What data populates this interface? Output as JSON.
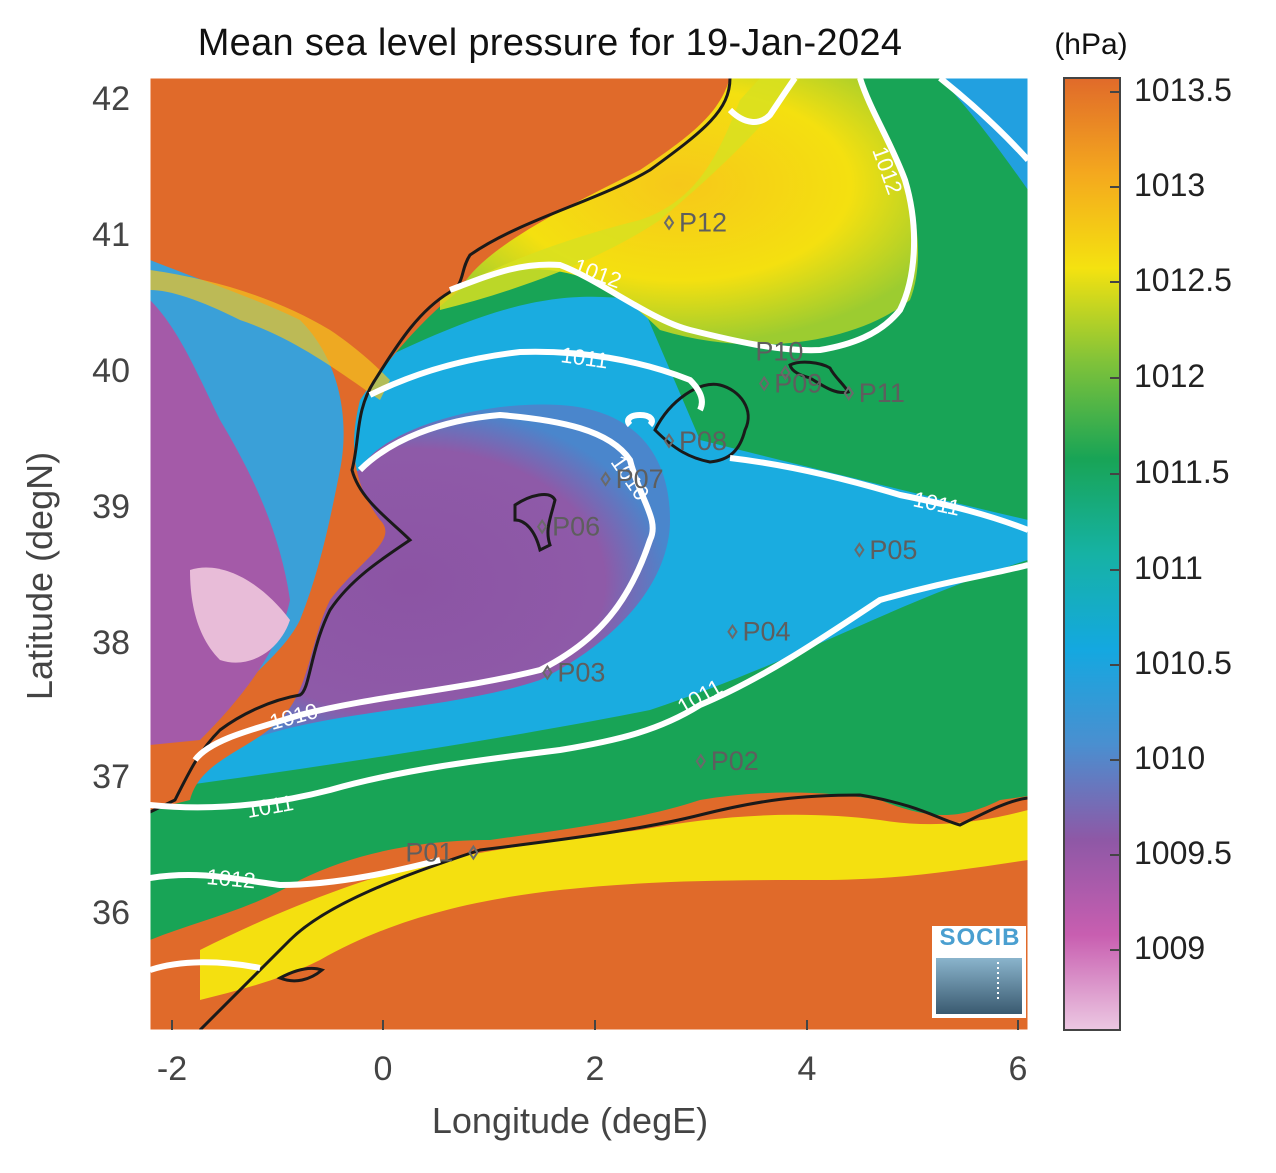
{
  "figure": {
    "title": "Mean sea level pressure for 19-Jan-2024",
    "xlabel": "Longitude (degE)",
    "ylabel": "Latitude (degN)",
    "x_ticks": [
      "-2",
      "0",
      "2",
      "4",
      "6"
    ],
    "y_ticks": [
      "42",
      "41",
      "40",
      "39",
      "38",
      "37",
      "36"
    ],
    "logo_text": "SOCIB"
  },
  "colorbar": {
    "unit": "(hPa)",
    "ticks": [
      "1013.5",
      "1013",
      "1012.5",
      "1012",
      "1011.5",
      "1011",
      "1010.5",
      "1010",
      "1009.5",
      "1009"
    ],
    "colors": [
      "#ecc8e2",
      "#c85eb0",
      "#8e58a6",
      "#4a8fd0",
      "#14a8e0",
      "#16b2a4",
      "#18a456",
      "#7ec23a",
      "#f4e210",
      "#f4a81e",
      "#e06a2a"
    ]
  },
  "contour_labels": [
    {
      "text": "1012"
    },
    {
      "text": "1012"
    },
    {
      "text": "1011"
    },
    {
      "text": "1010"
    },
    {
      "text": "1011"
    },
    {
      "text": "1010"
    },
    {
      "text": "1011"
    },
    {
      "text": "1011"
    },
    {
      "text": "1012"
    }
  ],
  "stations": [
    {
      "name": "P01",
      "lon": 0.85,
      "lat": 36.48
    },
    {
      "name": "P02",
      "lon": 3.0,
      "lat": 37.15
    },
    {
      "name": "P03",
      "lon": 1.55,
      "lat": 37.8
    },
    {
      "name": "P04",
      "lon": 3.3,
      "lat": 38.1
    },
    {
      "name": "P05",
      "lon": 4.5,
      "lat": 38.7
    },
    {
      "name": "P06",
      "lon": 1.5,
      "lat": 38.87
    },
    {
      "name": "P07",
      "lon": 2.1,
      "lat": 39.22
    },
    {
      "name": "P08",
      "lon": 2.7,
      "lat": 39.5
    },
    {
      "name": "P09",
      "lon": 3.6,
      "lat": 39.92
    },
    {
      "name": "P10",
      "lon": 3.8,
      "lat": 40.0
    },
    {
      "name": "P11",
      "lon": 4.4,
      "lat": 39.85
    },
    {
      "name": "P12",
      "lon": 2.7,
      "lat": 41.1
    }
  ]
}
